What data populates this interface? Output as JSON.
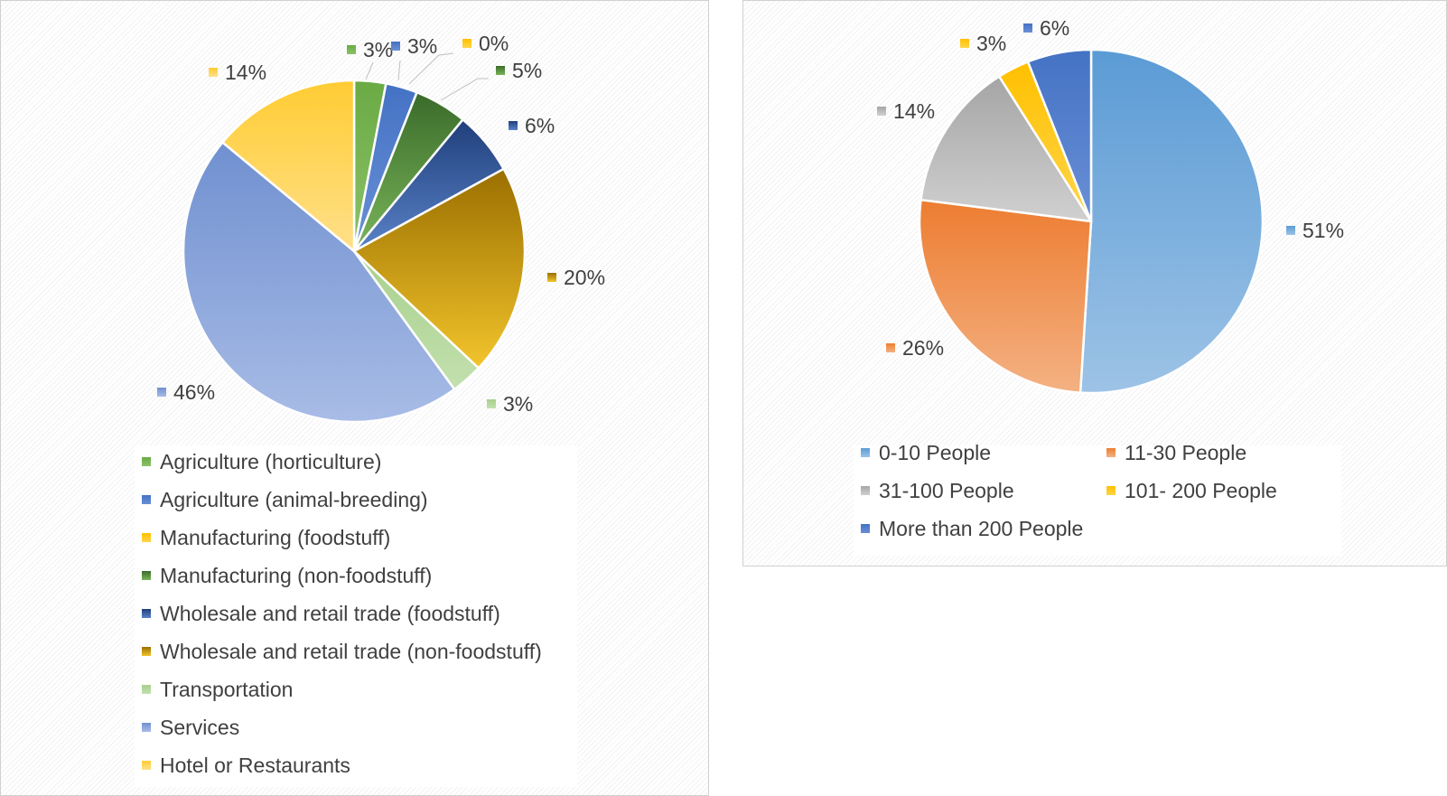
{
  "chart_data": [
    {
      "type": "pie",
      "legend_position": "bottom",
      "slices": [
        {
          "name": "Agriculture (horticulture)",
          "value": 3,
          "label": "3%",
          "color": "#6aaa44",
          "color_light": "#8cc26a"
        },
        {
          "name": "Agriculture (animal-breeding)",
          "value": 3,
          "label": "3%",
          "color": "#4472c4",
          "color_light": "#6a90d6"
        },
        {
          "name": "Manufacturing (foodstuff)",
          "value": 0,
          "label": "0%",
          "color": "#ffc000",
          "color_light": "#ffd54a"
        },
        {
          "name": "Manufacturing (non-foodstuff)",
          "value": 5,
          "label": "5%",
          "color": "#3a6b2a",
          "color_light": "#7ab55a"
        },
        {
          "name": "Wholesale and retail trade (foodstuff)",
          "value": 6,
          "label": "6%",
          "color": "#1f3f7a",
          "color_light": "#5a82c8"
        },
        {
          "name": "Wholesale and retail trade (non-foodstuff)",
          "value": 20,
          "label": "20%",
          "color": "#9a6f00",
          "color_light": "#f2c42c"
        },
        {
          "name": "Transportation",
          "value": 3,
          "label": "3%",
          "color": "#a8d08d",
          "color_light": "#c3e0ae"
        },
        {
          "name": "Services",
          "value": 46,
          "label": "46%",
          "color": "#7090d0",
          "color_light": "#a8bce6"
        },
        {
          "name": "Hotel or Restaurants",
          "value": 14,
          "label": "14%",
          "color": "#ffcc33",
          "color_light": "#ffe08a"
        }
      ]
    },
    {
      "type": "pie",
      "legend_position": "bottom",
      "slices": [
        {
          "name": "0-10 People",
          "value": 51,
          "label": "51%",
          "color": "#5b9bd5",
          "color_light": "#9dc3e6"
        },
        {
          "name": "11-30 People",
          "value": 26,
          "label": "26%",
          "color": "#ed7d31",
          "color_light": "#f4b183"
        },
        {
          "name": "31-100 People",
          "value": 14,
          "label": "14%",
          "color": "#a5a5a5",
          "color_light": "#d0d0d0"
        },
        {
          "name": "101- 200 People",
          "value": 3,
          "label": "3%",
          "color": "#ffc000",
          "color_light": "#ffd54a"
        },
        {
          "name": "More than 200 People",
          "value": 6,
          "label": "6%",
          "color": "#4472c4",
          "color_light": "#6a90d6"
        }
      ]
    }
  ]
}
